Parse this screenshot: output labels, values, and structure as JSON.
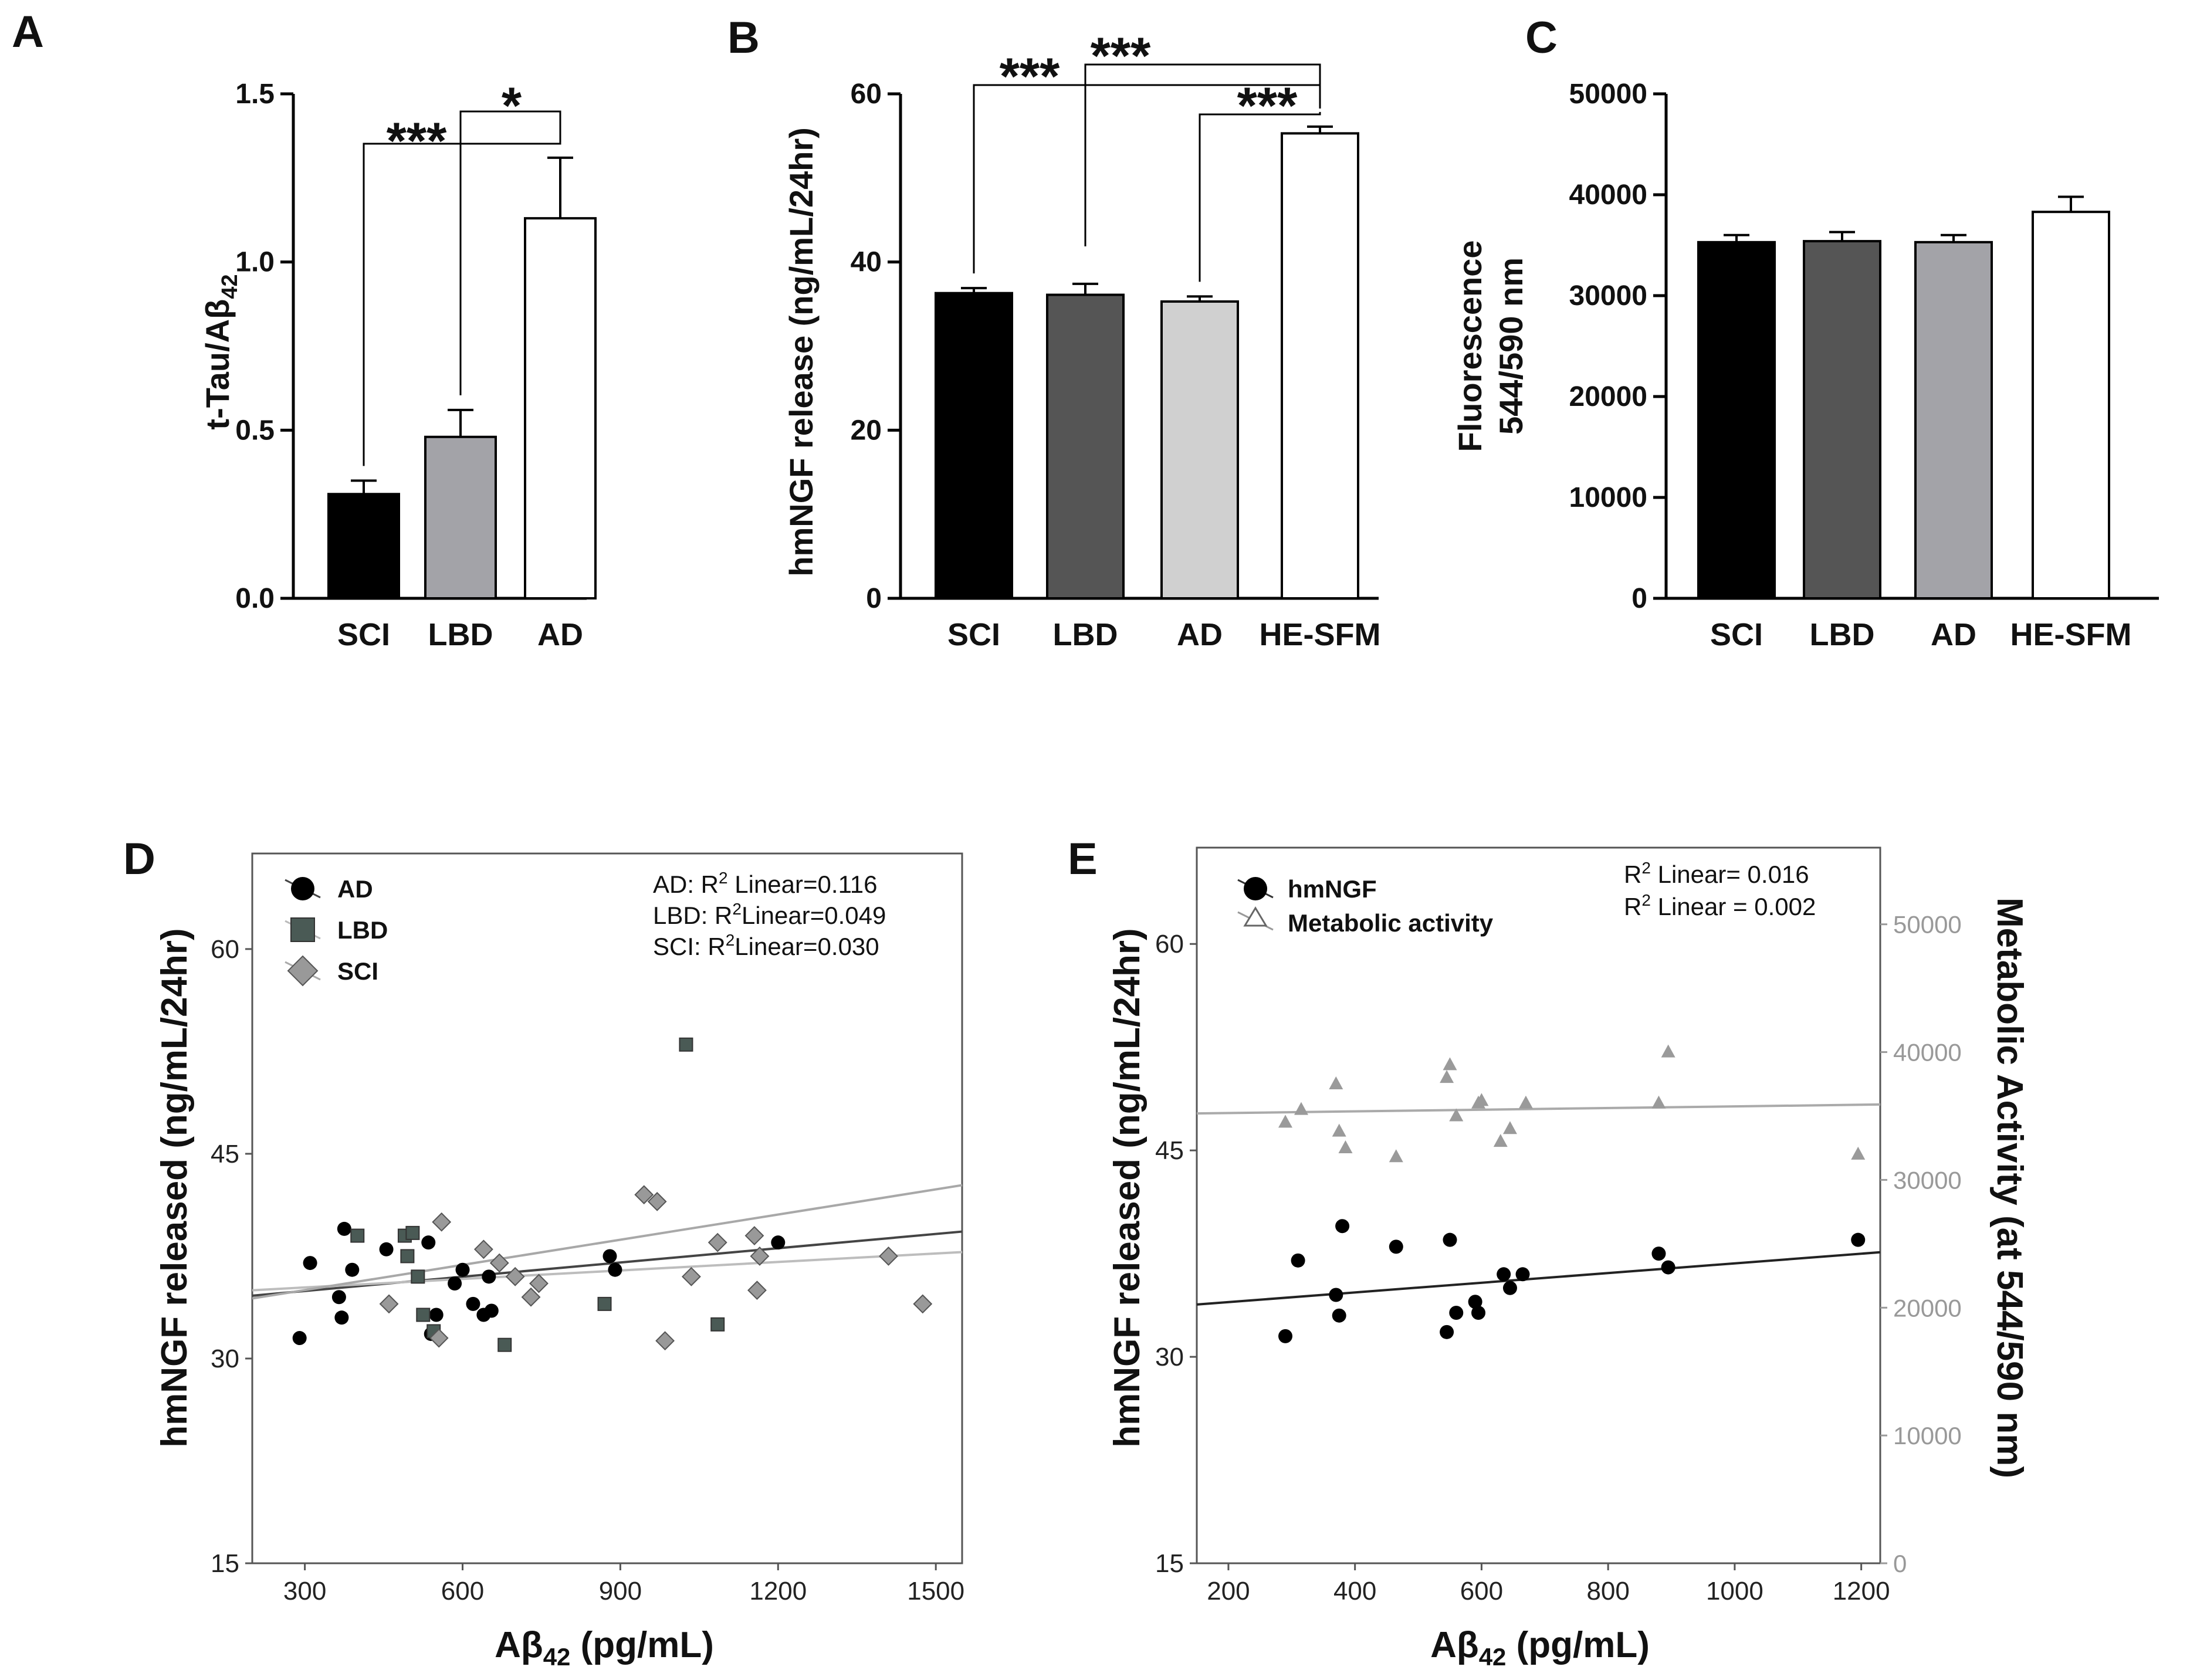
{
  "chart_data": [
    {
      "panel": "A",
      "type": "bar",
      "ylabel_main": "t-Tau/Aβ",
      "ylabel_sub": "42",
      "categories": [
        "SCI",
        "LBD",
        "AD"
      ],
      "values": [
        0.31,
        0.48,
        1.13
      ],
      "errors": [
        0.04,
        0.08,
        0.18
      ],
      "fills": [
        "#000000",
        "#a3a3a8",
        "#ffffff"
      ],
      "ylim": [
        0,
        1.5
      ],
      "yticks": [
        "0.0",
        "0.5",
        "1.0",
        "1.5"
      ],
      "significance": [
        {
          "from": "SCI",
          "to": "AD",
          "label": "***"
        },
        {
          "from": "LBD",
          "to": "AD",
          "label": "*"
        }
      ]
    },
    {
      "panel": "B",
      "type": "bar",
      "ylabel": "hmNGF release (ng/mL/24hr)",
      "categories": [
        "SCI",
        "LBD",
        "AD",
        "HE-SFM"
      ],
      "values": [
        36.3,
        36.1,
        35.3,
        55.3
      ],
      "errors": [
        0.6,
        1.3,
        0.6,
        0.8
      ],
      "fills": [
        "#000000",
        "#555555",
        "#d0d0d0",
        "#ffffff"
      ],
      "ylim": [
        0,
        60
      ],
      "yticks": [
        "0",
        "20",
        "40",
        "60"
      ],
      "significance": [
        {
          "from": "SCI",
          "to": "HE-SFM",
          "label": "***"
        },
        {
          "from": "LBD",
          "to": "HE-SFM",
          "label": "***"
        },
        {
          "from": "AD",
          "to": "HE-SFM",
          "label": "***"
        }
      ]
    },
    {
      "panel": "C",
      "type": "bar",
      "ylabel_line1": "Fluorescence",
      "ylabel_line2": "544/590 nm",
      "categories": [
        "SCI",
        "LBD",
        "AD",
        "HE-SFM"
      ],
      "values": [
        35300,
        35400,
        35300,
        38300
      ],
      "errors": [
        700,
        900,
        700,
        1500
      ],
      "fills": [
        "#000000",
        "#555555",
        "#a3a3a8",
        "#ffffff"
      ],
      "ylim": [
        0,
        50000
      ],
      "yticks": [
        "0",
        "10000",
        "20000",
        "30000",
        "40000",
        "50000"
      ]
    },
    {
      "panel": "D",
      "type": "scatter",
      "xlabel_main": "Aβ",
      "xlabel_sub": "42",
      "xlabel_unit": " (pg/mL)",
      "ylabel": "hmNGF released (ng/mL/24hr)",
      "xlim": [
        200,
        1550
      ],
      "ylim": [
        15,
        67
      ],
      "xticks": [
        "300",
        "600",
        "900",
        "1200",
        "1500"
      ],
      "yticks": [
        "15",
        "30",
        "45",
        "60"
      ],
      "legend": [
        "AD",
        "LBD",
        "SCI"
      ],
      "stats": {
        "ad": {
          "prefix": "AD: R",
          "sup": "2",
          "suffix": " Linear=0.116"
        },
        "lbd": {
          "prefix": "LBD: R",
          "sup": "2",
          "suffix": "Linear=0.049"
        },
        "sci": {
          "prefix": "SCI: R",
          "sup": "2",
          "suffix": "Linear=0.030"
        }
      },
      "series": [
        {
          "name": "AD",
          "marker": "circle",
          "color": "#000000",
          "points": [
            [
              290,
              31.5
            ],
            [
              310,
              37
            ],
            [
              365,
              34.5
            ],
            [
              370,
              33
            ],
            [
              375,
              39.5
            ],
            [
              390,
              36.5
            ],
            [
              455,
              38
            ],
            [
              535,
              38.5
            ],
            [
              540,
              31.8
            ],
            [
              550,
              33.2
            ],
            [
              585,
              35.5
            ],
            [
              600,
              36.5
            ],
            [
              620,
              34
            ],
            [
              640,
              33.2
            ],
            [
              650,
              36
            ],
            [
              655,
              33.5
            ],
            [
              880,
              37.5
            ],
            [
              890,
              36.5
            ],
            [
              1200,
              38.5
            ]
          ]
        },
        {
          "name": "LBD",
          "marker": "square",
          "color": "#4a5a55",
          "points": [
            [
              400,
              39
            ],
            [
              490,
              39
            ],
            [
              495,
              37.5
            ],
            [
              505,
              39.2
            ],
            [
              515,
              36
            ],
            [
              525,
              33.2
            ],
            [
              545,
              32
            ],
            [
              680,
              31
            ],
            [
              870,
              34
            ],
            [
              1025,
              53
            ],
            [
              1085,
              32.5
            ]
          ]
        },
        {
          "name": "SCI",
          "marker": "diamond",
          "color": "#999999",
          "points": [
            [
              460,
              34
            ],
            [
              555,
              31.5
            ],
            [
              560,
              40
            ],
            [
              640,
              38
            ],
            [
              670,
              37
            ],
            [
              700,
              36
            ],
            [
              730,
              34.5
            ],
            [
              745,
              35.5
            ],
            [
              945,
              42
            ],
            [
              970,
              41.5
            ],
            [
              985,
              31.3
            ],
            [
              1035,
              36
            ],
            [
              1085,
              38.5
            ],
            [
              1155,
              39
            ],
            [
              1160,
              35
            ],
            [
              1165,
              37.5
            ],
            [
              1410,
              37.5
            ],
            [
              1475,
              34
            ]
          ]
        }
      ],
      "fits": [
        {
          "name": "AD",
          "color": "#444444",
          "x0": 200,
          "y0": 34.6,
          "x1": 1550,
          "y1": 39.3
        },
        {
          "name": "LBD",
          "color": "#bdbdbd",
          "x0": 200,
          "y0": 35.0,
          "x1": 1550,
          "y1": 37.8
        },
        {
          "name": "SCI",
          "color": "#a8a8a8",
          "x0": 200,
          "y0": 34.4,
          "x1": 1550,
          "y1": 42.7
        }
      ]
    },
    {
      "panel": "E",
      "type": "scatter",
      "xlabel_main": "Aβ",
      "xlabel_sub": "42",
      "xlabel_unit": " (pg/mL)",
      "ylabel": "hmNGF released (ng/mL/24hr)",
      "ylabel_right": "Metabolic Activity  (at 544/590 nm)",
      "xlim": [
        150,
        1230
      ],
      "ylim": [
        15,
        67
      ],
      "ylim_right": [
        0,
        56000
      ],
      "xticks": [
        "200",
        "400",
        "600",
        "800",
        "1000",
        "1200"
      ],
      "yticks": [
        "15",
        "30",
        "45",
        "60"
      ],
      "yticks_right": [
        "0",
        "10000",
        "20000",
        "30000",
        "40000",
        "50000"
      ],
      "legend": [
        "hmNGF",
        "Metabolic activity"
      ],
      "stats": {
        "first": {
          "prefix": "R",
          "sup": "2",
          "suffix": " Linear= 0.016"
        },
        "second": {
          "prefix": "R",
          "sup": "2",
          "suffix": " Linear = 0.002"
        }
      },
      "series": [
        {
          "name": "hmNGF",
          "axis": "left",
          "marker": "circle",
          "color": "#000000",
          "points": [
            [
              290,
              31.5
            ],
            [
              310,
              37
            ],
            [
              370,
              34.5
            ],
            [
              375,
              33
            ],
            [
              380,
              39.5
            ],
            [
              465,
              38
            ],
            [
              545,
              31.8
            ],
            [
              550,
              38.5
            ],
            [
              560,
              33.2
            ],
            [
              590,
              34
            ],
            [
              595,
              33.2
            ],
            [
              635,
              36
            ],
            [
              645,
              35
            ],
            [
              665,
              36
            ],
            [
              880,
              37.5
            ],
            [
              895,
              36.5
            ],
            [
              1195,
              38.5
            ]
          ]
        },
        {
          "name": "Metabolic activity",
          "axis": "right",
          "marker": "triangle",
          "color": "#9a9a9a",
          "points": [
            [
              290,
              34500
            ],
            [
              315,
              35500
            ],
            [
              370,
              37500
            ],
            [
              375,
              33800
            ],
            [
              385,
              32500
            ],
            [
              465,
              31800
            ],
            [
              545,
              38000
            ],
            [
              550,
              39000
            ],
            [
              560,
              35000
            ],
            [
              595,
              36000
            ],
            [
              600,
              36200
            ],
            [
              630,
              33000
            ],
            [
              645,
              34000
            ],
            [
              670,
              36000
            ],
            [
              880,
              36000
            ],
            [
              895,
              40000
            ],
            [
              1195,
              32000
            ]
          ]
        }
      ],
      "fits": [
        {
          "name": "hmNGF",
          "axis": "left",
          "color": "#222222",
          "x0": 150,
          "y0": 33.8,
          "x1": 1230,
          "y1": 37.6
        },
        {
          "name": "Metabolic activity",
          "axis": "right",
          "color": "#aaaaaa",
          "x0": 150,
          "y0": 35200,
          "x1": 1230,
          "y1": 35900
        }
      ]
    }
  ]
}
